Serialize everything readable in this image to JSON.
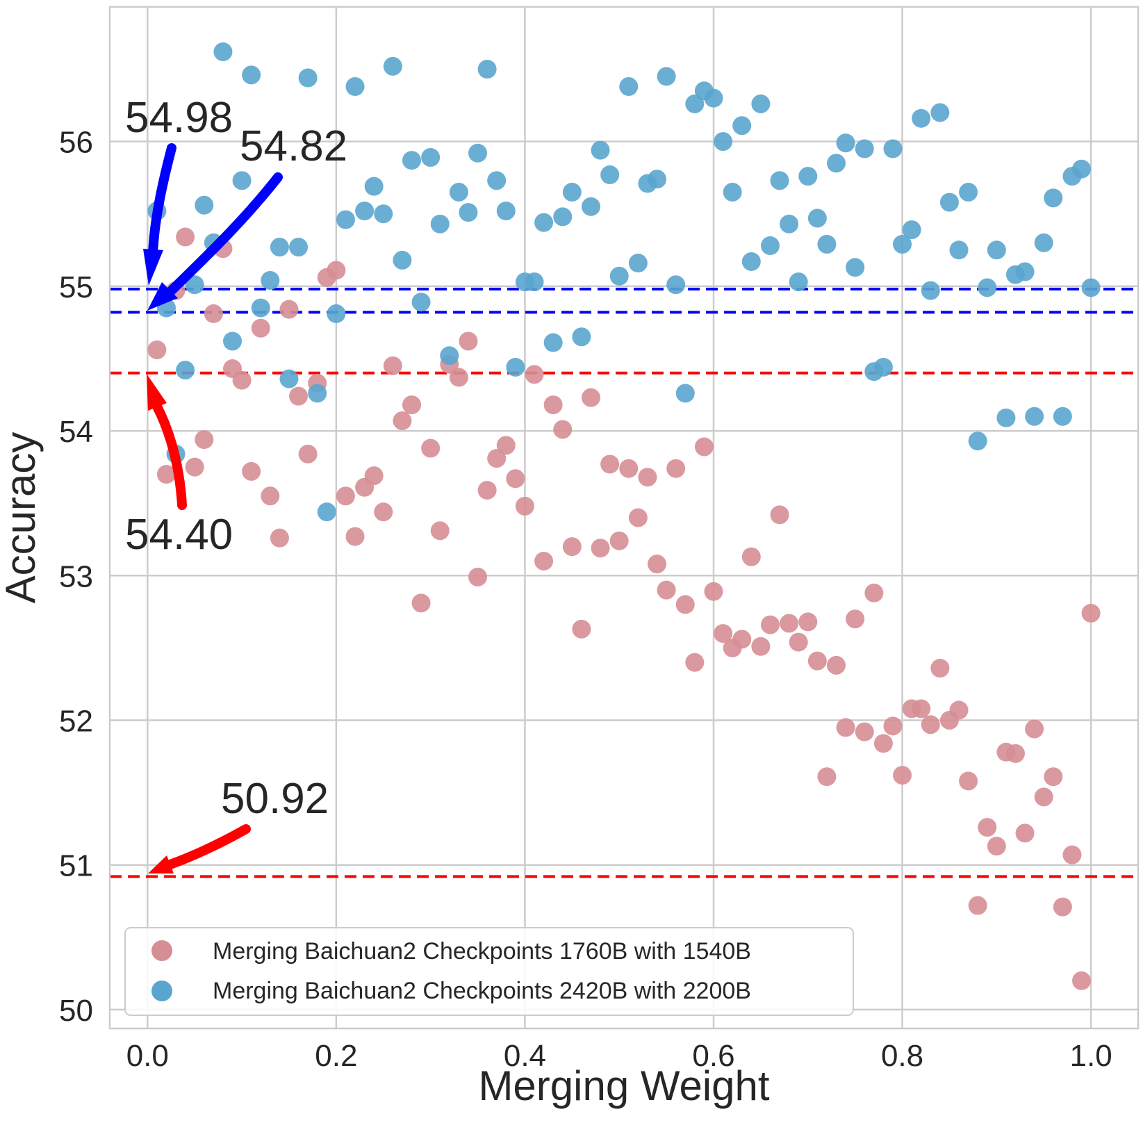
{
  "chart_data": {
    "type": "scatter",
    "title": "",
    "xlabel": "Merging Weight",
    "ylabel": "Accuracy",
    "xlim": [
      -0.04,
      1.05
    ],
    "ylim": [
      49.87,
      56.93
    ],
    "xticks": [
      "0.0",
      "0.2",
      "0.4",
      "0.6",
      "0.8",
      "1.0"
    ],
    "yticks": [
      "50",
      "51",
      "52",
      "53",
      "54",
      "55",
      "56"
    ],
    "grid": true,
    "legend_position": "lower-left",
    "series": [
      {
        "name": "Merging Baichuan2 Checkpoints 1760B with 1540B",
        "color": "#d68e95",
        "points": [
          [
            0.01,
            54.56
          ],
          [
            0.02,
            53.7
          ],
          [
            0.03,
            54.97
          ],
          [
            0.04,
            55.34
          ],
          [
            0.05,
            53.75
          ],
          [
            0.06,
            53.94
          ],
          [
            0.07,
            54.81
          ],
          [
            0.08,
            55.26
          ],
          [
            0.09,
            54.43
          ],
          [
            0.1,
            54.35
          ],
          [
            0.11,
            53.72
          ],
          [
            0.12,
            54.71
          ],
          [
            0.13,
            53.55
          ],
          [
            0.14,
            53.26
          ],
          [
            0.15,
            54.84
          ],
          [
            0.16,
            54.24
          ],
          [
            0.17,
            53.84
          ],
          [
            0.18,
            54.33
          ],
          [
            0.19,
            55.06
          ],
          [
            0.2,
            55.11
          ],
          [
            0.21,
            53.55
          ],
          [
            0.22,
            53.27
          ],
          [
            0.23,
            53.61
          ],
          [
            0.24,
            53.69
          ],
          [
            0.25,
            53.44
          ],
          [
            0.26,
            54.45
          ],
          [
            0.27,
            54.07
          ],
          [
            0.28,
            54.18
          ],
          [
            0.29,
            52.81
          ],
          [
            0.3,
            53.88
          ],
          [
            0.31,
            53.31
          ],
          [
            0.32,
            54.46
          ],
          [
            0.33,
            54.37
          ],
          [
            0.34,
            54.62
          ],
          [
            0.35,
            52.99
          ],
          [
            0.36,
            53.59
          ],
          [
            0.37,
            53.81
          ],
          [
            0.38,
            53.9
          ],
          [
            0.39,
            53.67
          ],
          [
            0.4,
            53.48
          ],
          [
            0.41,
            54.39
          ],
          [
            0.42,
            53.1
          ],
          [
            0.43,
            54.18
          ],
          [
            0.44,
            54.01
          ],
          [
            0.45,
            53.2
          ],
          [
            0.46,
            52.63
          ],
          [
            0.47,
            54.23
          ],
          [
            0.48,
            53.19
          ],
          [
            0.49,
            53.77
          ],
          [
            0.5,
            53.24
          ],
          [
            0.51,
            53.74
          ],
          [
            0.52,
            53.4
          ],
          [
            0.53,
            53.68
          ],
          [
            0.54,
            53.08
          ],
          [
            0.55,
            52.9
          ],
          [
            0.56,
            53.74
          ],
          [
            0.57,
            52.8
          ],
          [
            0.58,
            52.4
          ],
          [
            0.59,
            53.89
          ],
          [
            0.6,
            52.89
          ],
          [
            0.61,
            52.6
          ],
          [
            0.62,
            52.5
          ],
          [
            0.63,
            52.56
          ],
          [
            0.64,
            53.13
          ],
          [
            0.65,
            52.51
          ],
          [
            0.66,
            52.66
          ],
          [
            0.67,
            53.42
          ],
          [
            0.68,
            52.67
          ],
          [
            0.69,
            52.54
          ],
          [
            0.7,
            52.68
          ],
          [
            0.71,
            52.41
          ],
          [
            0.72,
            51.61
          ],
          [
            0.73,
            52.38
          ],
          [
            0.74,
            51.95
          ],
          [
            0.75,
            52.7
          ],
          [
            0.76,
            51.92
          ],
          [
            0.77,
            52.88
          ],
          [
            0.78,
            51.84
          ],
          [
            0.79,
            51.96
          ],
          [
            0.8,
            51.62
          ],
          [
            0.81,
            52.08
          ],
          [
            0.82,
            52.08
          ],
          [
            0.83,
            51.97
          ],
          [
            0.84,
            52.36
          ],
          [
            0.85,
            52.0
          ],
          [
            0.86,
            52.07
          ],
          [
            0.87,
            51.58
          ],
          [
            0.88,
            50.72
          ],
          [
            0.89,
            51.26
          ],
          [
            0.9,
            51.13
          ],
          [
            0.91,
            51.78
          ],
          [
            0.92,
            51.77
          ],
          [
            0.93,
            51.22
          ],
          [
            0.94,
            51.94
          ],
          [
            0.95,
            51.47
          ],
          [
            0.96,
            51.61
          ],
          [
            0.97,
            50.71
          ],
          [
            0.98,
            51.07
          ],
          [
            0.99,
            50.2
          ],
          [
            1.0,
            52.74
          ]
        ]
      },
      {
        "name": "Merging Baichuan2 Checkpoints 2420B with 2200B",
        "color": "#5aa5cf",
        "points": [
          [
            0.01,
            55.52
          ],
          [
            0.02,
            54.85
          ],
          [
            0.03,
            53.84
          ],
          [
            0.04,
            54.42
          ],
          [
            0.05,
            55.01
          ],
          [
            0.06,
            55.56
          ],
          [
            0.07,
            55.3
          ],
          [
            0.08,
            56.62
          ],
          [
            0.09,
            54.62
          ],
          [
            0.1,
            55.73
          ],
          [
            0.11,
            56.46
          ],
          [
            0.12,
            54.85
          ],
          [
            0.13,
            55.04
          ],
          [
            0.14,
            55.27
          ],
          [
            0.15,
            54.36
          ],
          [
            0.16,
            55.27
          ],
          [
            0.17,
            56.44
          ],
          [
            0.18,
            54.26
          ],
          [
            0.19,
            53.44
          ],
          [
            0.2,
            54.81
          ],
          [
            0.21,
            55.46
          ],
          [
            0.22,
            56.38
          ],
          [
            0.23,
            55.52
          ],
          [
            0.24,
            55.69
          ],
          [
            0.25,
            55.5
          ],
          [
            0.26,
            56.52
          ],
          [
            0.27,
            55.18
          ],
          [
            0.28,
            55.87
          ],
          [
            0.29,
            54.89
          ],
          [
            0.3,
            55.89
          ],
          [
            0.31,
            55.43
          ],
          [
            0.32,
            54.52
          ],
          [
            0.33,
            55.65
          ],
          [
            0.34,
            55.51
          ],
          [
            0.35,
            55.92
          ],
          [
            0.36,
            56.5
          ],
          [
            0.37,
            55.73
          ],
          [
            0.38,
            55.52
          ],
          [
            0.39,
            54.44
          ],
          [
            0.4,
            55.03
          ],
          [
            0.41,
            55.03
          ],
          [
            0.42,
            55.44
          ],
          [
            0.43,
            54.61
          ],
          [
            0.44,
            55.48
          ],
          [
            0.45,
            55.65
          ],
          [
            0.46,
            54.65
          ],
          [
            0.47,
            55.55
          ],
          [
            0.48,
            55.94
          ],
          [
            0.49,
            55.77
          ],
          [
            0.5,
            55.07
          ],
          [
            0.51,
            56.38
          ],
          [
            0.52,
            55.16
          ],
          [
            0.53,
            55.71
          ],
          [
            0.54,
            55.74
          ],
          [
            0.55,
            56.45
          ],
          [
            0.56,
            55.01
          ],
          [
            0.57,
            54.26
          ],
          [
            0.58,
            56.26
          ],
          [
            0.59,
            56.35
          ],
          [
            0.6,
            56.3
          ],
          [
            0.61,
            56.0
          ],
          [
            0.62,
            55.65
          ],
          [
            0.63,
            56.11
          ],
          [
            0.64,
            55.17
          ],
          [
            0.65,
            56.26
          ],
          [
            0.66,
            55.28
          ],
          [
            0.67,
            55.73
          ],
          [
            0.68,
            55.43
          ],
          [
            0.69,
            55.03
          ],
          [
            0.7,
            55.76
          ],
          [
            0.71,
            55.47
          ],
          [
            0.72,
            55.29
          ],
          [
            0.73,
            55.85
          ],
          [
            0.74,
            55.99
          ],
          [
            0.75,
            55.13
          ],
          [
            0.76,
            55.95
          ],
          [
            0.77,
            54.41
          ],
          [
            0.78,
            54.44
          ],
          [
            0.79,
            55.95
          ],
          [
            0.8,
            55.29
          ],
          [
            0.81,
            55.39
          ],
          [
            0.82,
            56.16
          ],
          [
            0.83,
            54.97
          ],
          [
            0.84,
            56.2
          ],
          [
            0.85,
            55.58
          ],
          [
            0.86,
            55.25
          ],
          [
            0.87,
            55.65
          ],
          [
            0.88,
            53.93
          ],
          [
            0.89,
            54.99
          ],
          [
            0.9,
            55.25
          ],
          [
            0.91,
            54.09
          ],
          [
            0.92,
            55.08
          ],
          [
            0.93,
            55.1
          ],
          [
            0.94,
            54.1
          ],
          [
            0.95,
            55.3
          ],
          [
            0.96,
            55.61
          ],
          [
            0.97,
            54.1
          ],
          [
            0.98,
            55.76
          ],
          [
            0.99,
            55.81
          ],
          [
            1.0,
            54.99
          ]
        ]
      }
    ],
    "reference_lines": [
      {
        "value": 54.98,
        "label": "54.98",
        "color": "#0000ff"
      },
      {
        "value": 54.82,
        "label": "54.82",
        "color": "#0000ff"
      },
      {
        "value": 54.4,
        "label": "54.40",
        "color": "#ff0000"
      },
      {
        "value": 50.92,
        "label": "50.92",
        "color": "#ff0000"
      }
    ]
  }
}
